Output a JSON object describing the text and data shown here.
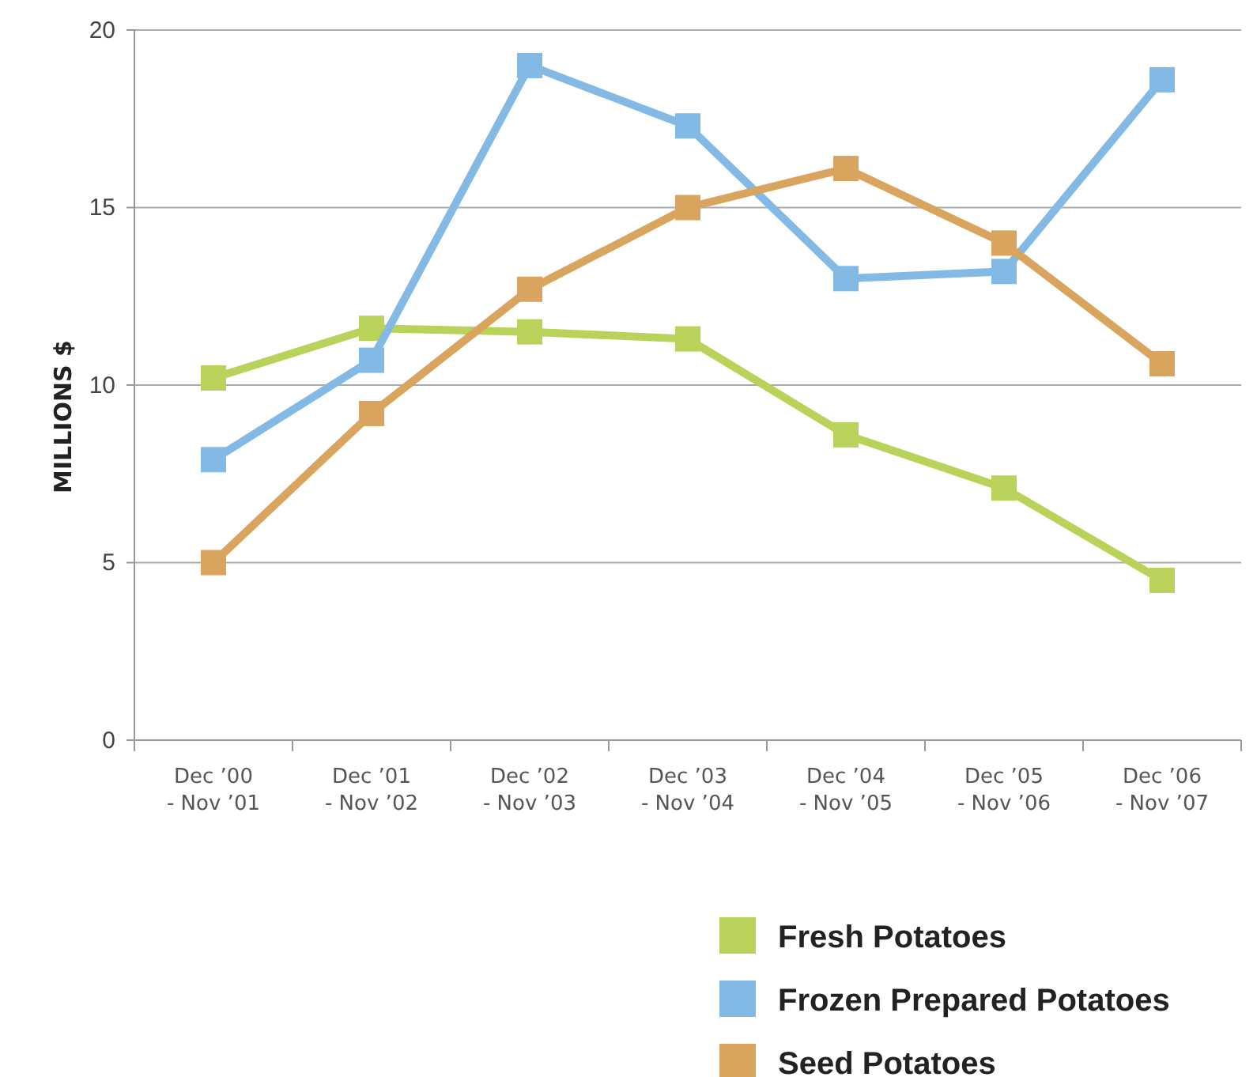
{
  "chart_data": {
    "type": "line",
    "ylabel": "MILLIONS $",
    "categories": [
      "Dec ’00\n- Nov ’01",
      "Dec ’01\n- Nov ’02",
      "Dec ’02\n- Nov ’03",
      "Dec ’03\n- Nov ’04",
      "Dec ’04\n- Nov ’05",
      "Dec ’05\n- Nov ’06",
      "Dec ’06\n- Nov ’07"
    ],
    "series": [
      {
        "name": "Fresh Potatoes",
        "color": "#b9d35a",
        "values": [
          10.2,
          11.6,
          11.5,
          11.3,
          8.6,
          7.1,
          4.5
        ]
      },
      {
        "name": "Frozen Prepared Potatoes",
        "color": "#83b9e5",
        "values": [
          7.9,
          10.7,
          19.0,
          17.3,
          13.0,
          13.2,
          18.6
        ]
      },
      {
        "name": "Seed Potatoes",
        "color": "#d9a45d",
        "values": [
          5.0,
          9.2,
          12.7,
          15.0,
          16.1,
          14.0,
          10.6
        ]
      }
    ],
    "ylim": [
      0,
      20
    ],
    "yticks": [
      0,
      5,
      10,
      15,
      20
    ],
    "grid": "y",
    "legend": "bottom right",
    "marker": "square",
    "line_style": "solid"
  }
}
